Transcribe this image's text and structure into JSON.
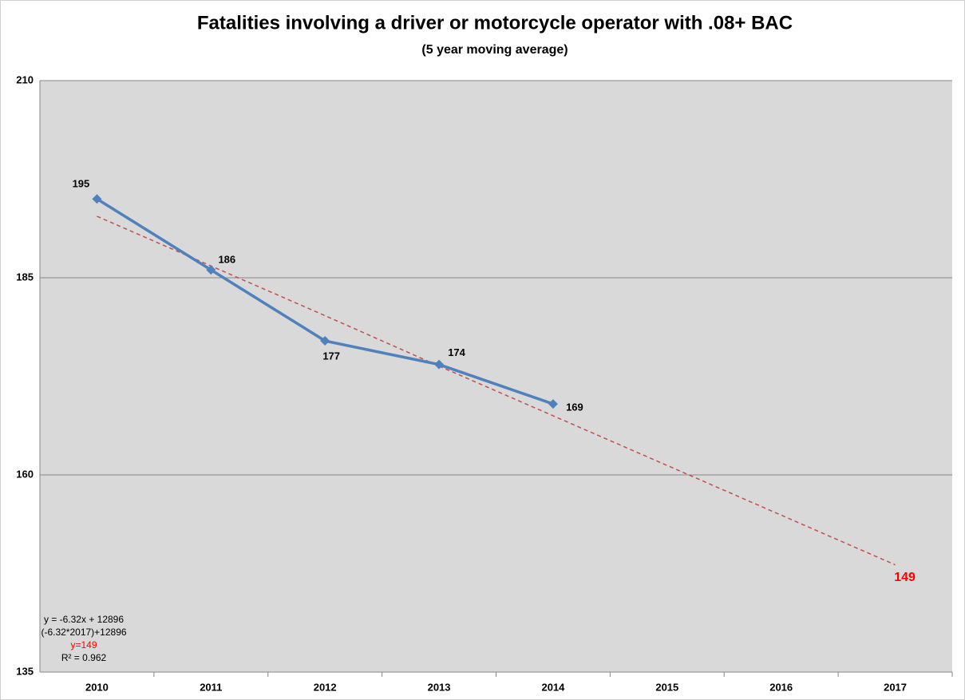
{
  "chart_data": {
    "type": "line",
    "title": "Fatalities involving a driver or motorcycle operator with .08+ BAC",
    "subtitle": "(5 year moving average)",
    "categories": [
      "2010",
      "2011",
      "2012",
      "2013",
      "2014",
      "2015",
      "2016",
      "2017"
    ],
    "values": [
      195,
      186,
      177,
      174,
      169,
      null,
      null,
      null
    ],
    "color": "#4f81bd",
    "ylim": [
      135,
      210
    ],
    "yticks": [
      135,
      160,
      185,
      210
    ],
    "grid": true,
    "trendline": {
      "color": "#c0504d",
      "values": [
        192.8,
        186.5,
        180.2,
        173.8,
        167.5,
        161.2,
        154.9,
        148.6
      ],
      "value_labels": [
        null,
        null,
        null,
        null,
        null,
        null,
        null,
        "149"
      ]
    },
    "annotations": [
      {
        "text": "y = -6.32x + 12896",
        "color": "#000000"
      },
      {
        "text": "(-6.32*2017)+12896",
        "color": "#000000"
      },
      {
        "text": "y=149",
        "color": "#ff0000"
      },
      {
        "text": "R² = 0.962",
        "color": "#000000"
      }
    ]
  }
}
